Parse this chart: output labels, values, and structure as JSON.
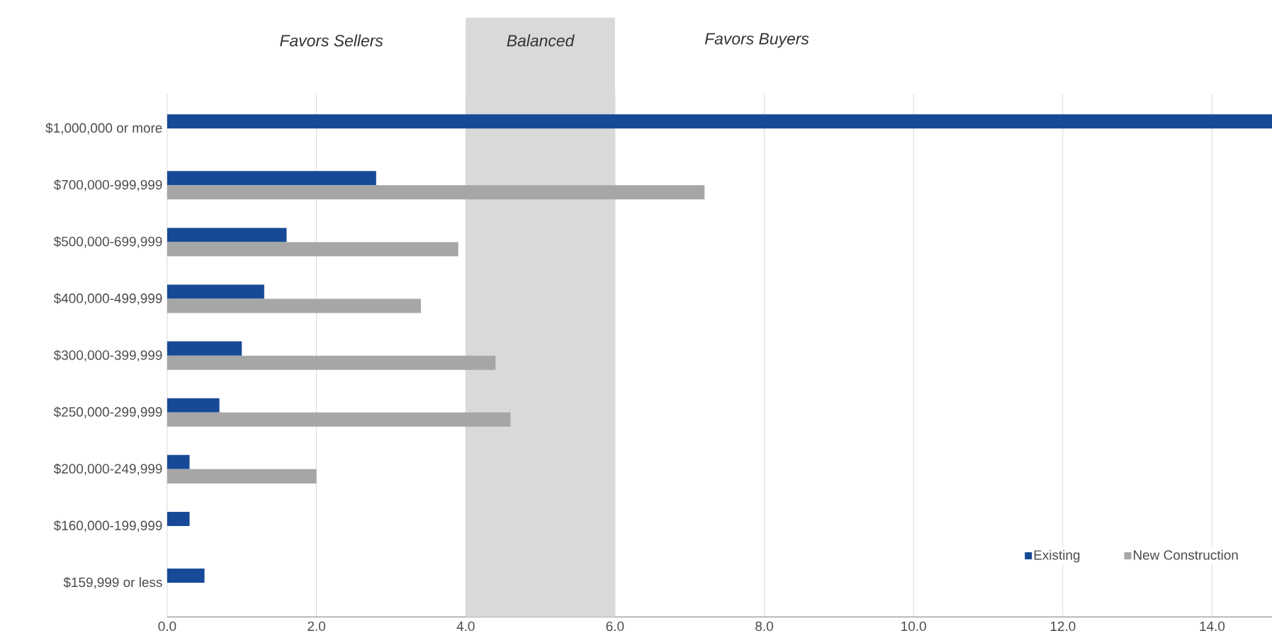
{
  "chart_data": {
    "type": "bar",
    "orientation": "horizontal",
    "categories": [
      "$1,000,000 or more",
      "$700,000-999,999",
      "$500,000-699,999",
      "$400,000-499,999",
      "$300,000-399,999",
      "$250,000-299,999",
      "$200,000-249,999",
      "$160,000-199,999",
      "$159,999 or less"
    ],
    "series": [
      {
        "name": "Existing",
        "color": "#174a96",
        "values": [
          14.85,
          2.8,
          1.6,
          1.3,
          1.0,
          0.7,
          0.3,
          0.3,
          0.5
        ]
      },
      {
        "name": "New Construction",
        "color": "#a6a6a6",
        "values": [
          null,
          7.2,
          3.9,
          3.4,
          4.4,
          4.6,
          2.0,
          null,
          null
        ]
      }
    ],
    "xlim": [
      0,
      14.85
    ],
    "xticks": [
      {
        "value": 0,
        "label": "0.0"
      },
      {
        "value": 2,
        "label": "2.0"
      },
      {
        "value": 4,
        "label": "4.0"
      },
      {
        "value": 6,
        "label": "6.0"
      },
      {
        "value": 8,
        "label": "8.0"
      },
      {
        "value": 10,
        "label": "10.0"
      },
      {
        "value": 12,
        "label": "12.0"
      },
      {
        "value": 14,
        "label": "14.0"
      }
    ],
    "bands": [
      {
        "axis": "x",
        "from": 4,
        "to": 6,
        "label": "Balanced",
        "color": "#d9d9d9"
      }
    ],
    "annotations": [
      "Favors Sellers",
      "Favors Buyers"
    ],
    "grid": "x",
    "legend": "bottom right"
  }
}
